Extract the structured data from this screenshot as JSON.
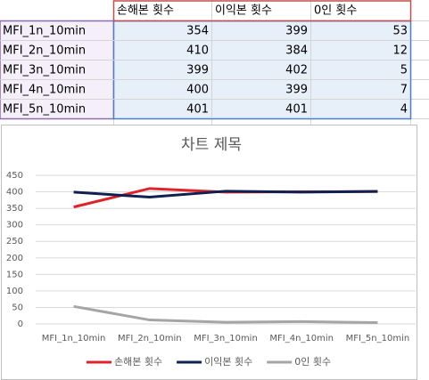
{
  "chart_data": {
    "type": "line",
    "title": "차트 제목",
    "categories": [
      "MFI_1n_10min",
      "MFI_2n_10min",
      "MFI_3n_10min",
      "MFI_4n_10min",
      "MFI_5n_10min"
    ],
    "series": [
      {
        "name": "손해본 횟수",
        "color": "#e0232b",
        "values": [
          354,
          410,
          399,
          400,
          401
        ]
      },
      {
        "name": "이익본 횟수",
        "color": "#0e2150",
        "values": [
          399,
          384,
          402,
          399,
          401
        ]
      },
      {
        "name": "0인 횟수",
        "color": "#a5a5a5",
        "values": [
          53,
          12,
          5,
          7,
          4
        ]
      }
    ],
    "ylim": [
      0,
      450
    ],
    "yticks": [
      0,
      50,
      100,
      150,
      200,
      250,
      300,
      350,
      400,
      450
    ],
    "grid": true,
    "legend": "bottom"
  }
}
